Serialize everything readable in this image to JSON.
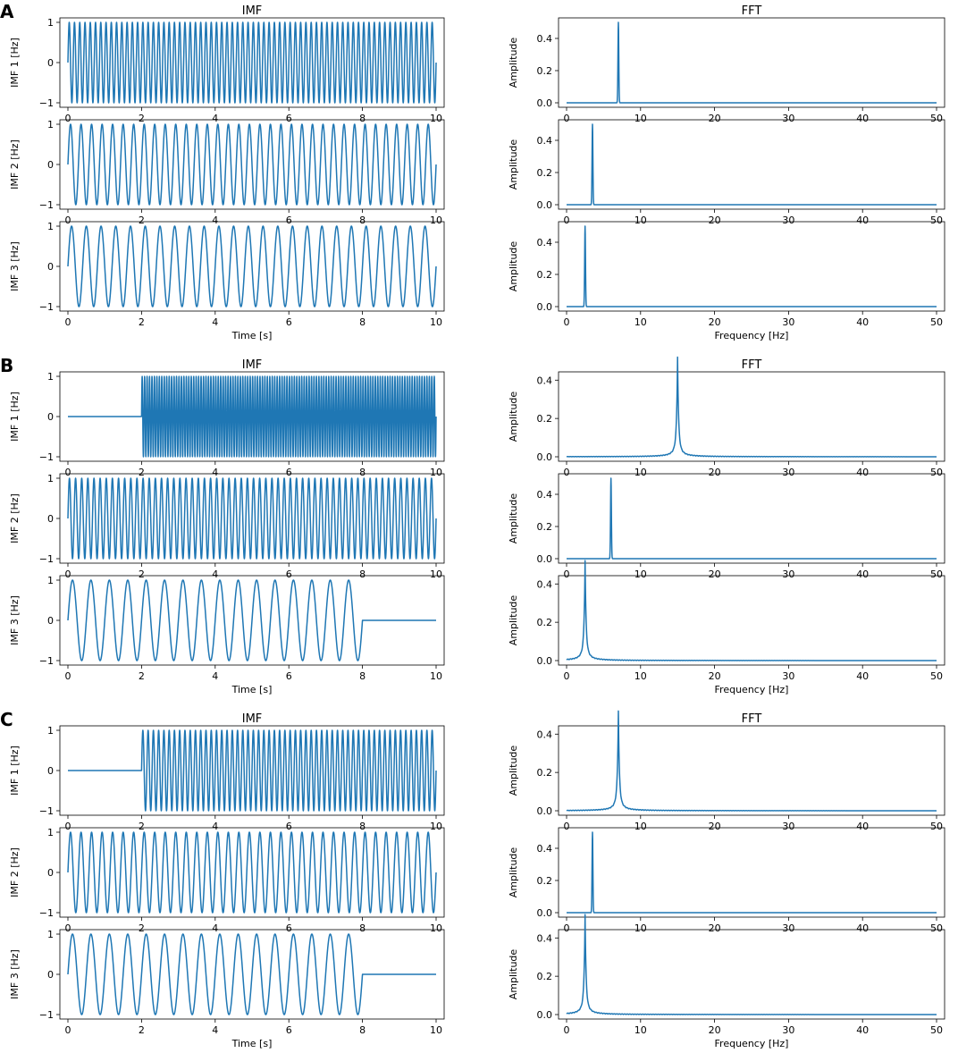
{
  "chart_data": [
    {
      "panel_label": "A",
      "type": "line",
      "imf_title": "IMF",
      "fft_title": "FFT",
      "time_xlabel": "Time [s]",
      "freq_xlabel": "Frequency [Hz]",
      "time_xlim": [
        0,
        10
      ],
      "freq_xlim": [
        0,
        50
      ],
      "time_xticks": [
        "0",
        "2",
        "4",
        "6",
        "8",
        "10"
      ],
      "freq_xticks": [
        "0",
        "10",
        "20",
        "30",
        "40",
        "50"
      ],
      "line_color": "#1f77b4",
      "rows": [
        {
          "imf_ylabel": "IMF 1 [Hz]",
          "imf_ylim": [
            -1,
            1
          ],
          "imf_yticks": [
            "1",
            "0",
            "−1"
          ],
          "imf_segments": [
            {
              "start": 0,
              "end": 10,
              "freq_hz": 7
            }
          ],
          "fft_ylabel": "Amplitude",
          "fft_ylim": [
            0,
            0.5
          ],
          "fft_yticks": [
            "0.4",
            "0.2",
            "0.0"
          ],
          "fft_peak": {
            "freq_hz": 7,
            "amplitude": 0.5,
            "leak": false
          }
        },
        {
          "imf_ylabel": "IMF 2 [Hz]",
          "imf_ylim": [
            -1,
            1
          ],
          "imf_yticks": [
            "1",
            "0",
            "−1"
          ],
          "imf_segments": [
            {
              "start": 0,
              "end": 10,
              "freq_hz": 3.5
            }
          ],
          "fft_ylabel": "Amplitude",
          "fft_ylim": [
            0,
            0.5
          ],
          "fft_yticks": [
            "0.4",
            "0.2",
            "0.0"
          ],
          "fft_peak": {
            "freq_hz": 3.5,
            "amplitude": 0.5,
            "leak": false
          }
        },
        {
          "imf_ylabel": "IMF 3 [Hz]",
          "imf_ylim": [
            -1,
            1
          ],
          "imf_yticks": [
            "1",
            "0",
            "−1"
          ],
          "imf_segments": [
            {
              "start": 0,
              "end": 10,
              "freq_hz": 2.5
            }
          ],
          "fft_ylabel": "Amplitude",
          "fft_ylim": [
            0,
            0.5
          ],
          "fft_yticks": [
            "0.4",
            "0.2",
            "0.0"
          ],
          "fft_peak": {
            "freq_hz": 2.5,
            "amplitude": 0.5,
            "leak": false
          }
        }
      ]
    },
    {
      "panel_label": "B",
      "type": "line",
      "imf_title": "IMF",
      "fft_title": "FFT",
      "time_xlabel": "Time [s]",
      "freq_xlabel": "Frequency [Hz]",
      "time_xlim": [
        0,
        10
      ],
      "freq_xlim": [
        0,
        50
      ],
      "time_xticks": [
        "0",
        "2",
        "4",
        "6",
        "8",
        "10"
      ],
      "freq_xticks": [
        "0",
        "10",
        "20",
        "30",
        "40",
        "50"
      ],
      "line_color": "#1f77b4",
      "rows": [
        {
          "imf_ylabel": "IMF 1 [Hz]",
          "imf_ylim": [
            -1,
            1
          ],
          "imf_yticks": [
            "1",
            "0",
            "−1"
          ],
          "imf_segments": [
            {
              "start": 2,
              "end": 10,
              "freq_hz": 15
            }
          ],
          "fft_ylabel": "Amplitude",
          "fft_ylim": [
            0,
            0.42
          ],
          "fft_yticks": [
            "0.4",
            "0.2",
            "0.0"
          ],
          "fft_peak": {
            "freq_hz": 15,
            "amplitude": 0.4,
            "leak": true
          }
        },
        {
          "imf_ylabel": "IMF 2 [Hz]",
          "imf_ylim": [
            -1,
            1
          ],
          "imf_yticks": [
            "1",
            "0",
            "−1"
          ],
          "imf_segments": [
            {
              "start": 0,
              "end": 10,
              "freq_hz": 6
            }
          ],
          "fft_ylabel": "Amplitude",
          "fft_ylim": [
            0,
            0.5
          ],
          "fft_yticks": [
            "0.4",
            "0.2",
            "0.0"
          ],
          "fft_peak": {
            "freq_hz": 6,
            "amplitude": 0.5,
            "leak": false
          }
        },
        {
          "imf_ylabel": "IMF 3 [Hz]",
          "imf_ylim": [
            -1,
            1
          ],
          "imf_yticks": [
            "1",
            "0",
            "−1"
          ],
          "imf_segments": [
            {
              "start": 0,
              "end": 8,
              "freq_hz": 2
            }
          ],
          "fft_ylabel": "Amplitude",
          "fft_ylim": [
            0,
            0.42
          ],
          "fft_yticks": [
            "0.4",
            "0.2",
            "0.0"
          ],
          "fft_peak": {
            "freq_hz": 2.5,
            "amplitude": 0.4,
            "leak": true
          }
        }
      ]
    },
    {
      "panel_label": "C",
      "type": "line",
      "imf_title": "IMF",
      "fft_title": "FFT",
      "time_xlabel": "Time [s]",
      "freq_xlabel": "Frequency [Hz]",
      "time_xlim": [
        0,
        10
      ],
      "freq_xlim": [
        0,
        50
      ],
      "time_xticks": [
        "0",
        "2",
        "4",
        "6",
        "8",
        "10"
      ],
      "freq_xticks": [
        "0",
        "10",
        "20",
        "30",
        "40",
        "50"
      ],
      "line_color": "#1f77b4",
      "rows": [
        {
          "imf_ylabel": "IMF 1 [Hz]",
          "imf_ylim": [
            -1,
            1
          ],
          "imf_yticks": [
            "1",
            "0",
            "−1"
          ],
          "imf_segments": [
            {
              "start": 2,
              "end": 10,
              "freq_hz": 7
            }
          ],
          "fft_ylabel": "Amplitude",
          "fft_ylim": [
            0,
            0.42
          ],
          "fft_yticks": [
            "0.4",
            "0.2",
            "0.0"
          ],
          "fft_peak": {
            "freq_hz": 7,
            "amplitude": 0.4,
            "leak": true
          }
        },
        {
          "imf_ylabel": "IMF 2 [Hz]",
          "imf_ylim": [
            -1,
            1
          ],
          "imf_yticks": [
            "1",
            "0",
            "−1"
          ],
          "imf_segments": [
            {
              "start": 0,
              "end": 10,
              "freq_hz": 3.5
            }
          ],
          "fft_ylabel": "Amplitude",
          "fft_ylim": [
            0,
            0.5
          ],
          "fft_yticks": [
            "0.4",
            "0.2",
            "0.0"
          ],
          "fft_peak": {
            "freq_hz": 3.5,
            "amplitude": 0.5,
            "leak": false
          }
        },
        {
          "imf_ylabel": "IMF 3 [Hz]",
          "imf_ylim": [
            -1,
            1
          ],
          "imf_yticks": [
            "1",
            "0",
            "−1"
          ],
          "imf_segments": [
            {
              "start": 0,
              "end": 8,
              "freq_hz": 2
            }
          ],
          "fft_ylabel": "Amplitude",
          "fft_ylim": [
            0,
            0.42
          ],
          "fft_yticks": [
            "0.4",
            "0.2",
            "0.0"
          ],
          "fft_peak": {
            "freq_hz": 2.5,
            "amplitude": 0.4,
            "leak": true
          }
        }
      ]
    }
  ]
}
